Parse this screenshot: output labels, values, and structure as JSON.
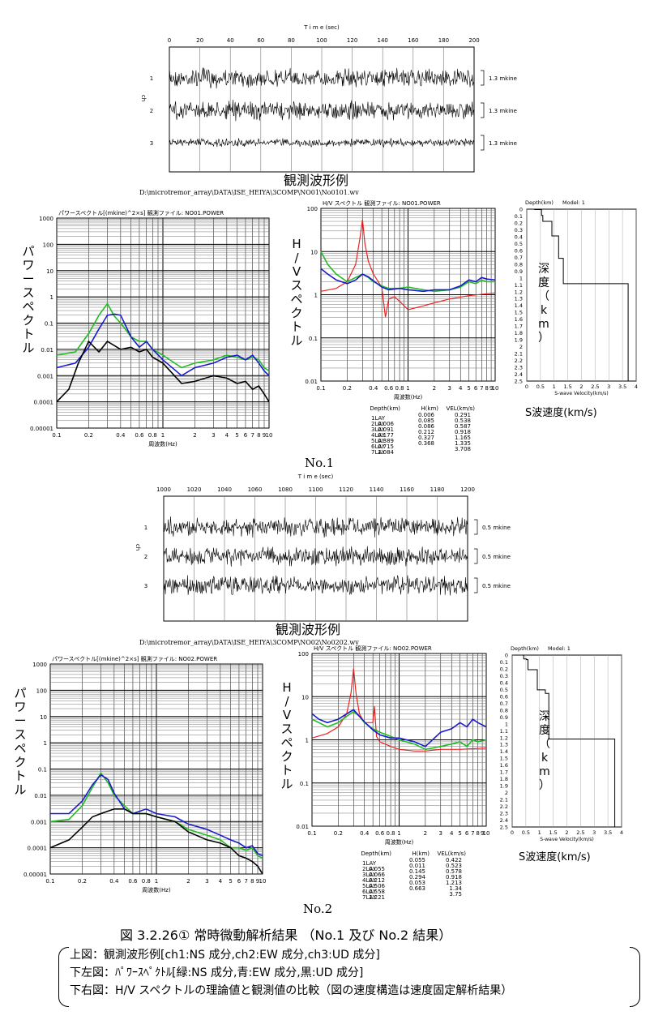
{
  "panel1": {
    "time_axis_title": "T i m e (sec)",
    "time_ticks": [
      "0",
      "20",
      "40",
      "60",
      "80",
      "100",
      "120",
      "140",
      "160",
      "180",
      "200"
    ],
    "channel_axis_label": "ch",
    "channels": [
      "1",
      "2",
      "3"
    ],
    "scales": [
      "1.3  mkine",
      "1.3  mkine",
      "1.3  mkine"
    ],
    "caption": "観測波形例",
    "file_path": "D:\\microtremor_array\\DATA\\ISE_HEIYA\\3COMP\\NO01\\No0101.wv",
    "label": "No.1"
  },
  "panel2": {
    "time_axis_title": "T i m e (sec)",
    "time_ticks": [
      "1000",
      "1020",
      "1040",
      "1060",
      "1080",
      "1100",
      "1120",
      "1140",
      "1160",
      "1180",
      "1200"
    ],
    "channel_axis_label": "ch",
    "channels": [
      "1",
      "2",
      "3"
    ],
    "scales": [
      "0.5  mkine",
      "0.5  mkine",
      "0.5  mkine"
    ],
    "caption": "観測波形例",
    "file_path": "D:\\microtremor_array\\DATA\\ISE_HEIYA\\3COMP\\NO02\\No0202.wv",
    "label": "No.2"
  },
  "power1": {
    "header": "パワースペクトル[(mkine)^2×s]   観測ファイル:   NO01.POWER",
    "ylabel": "パワースペクトル",
    "xlabel": "周波数(Hz)",
    "y_ticks": [
      "1000",
      "100",
      "10",
      "1",
      "0.1",
      "0.01",
      "0.001",
      "0.0001",
      "0.00001"
    ],
    "x_ticks": [
      "0.1",
      "0.2",
      "0.4",
      "0.6",
      "0.8",
      "1",
      "2",
      "3",
      "4",
      "5",
      "6",
      "7",
      "8",
      "9",
      "10"
    ]
  },
  "power2": {
    "header": "パワースペクトル[(mkine)^2×s]   観測ファイル:   NO02.POWER",
    "ylabel": "パワースペクトル",
    "xlabel": "周波数(Hz)",
    "y_ticks": [
      "1000",
      "100",
      "10",
      "1",
      "0.1",
      "0.01",
      "0.001",
      "0.0001",
      "0.00001"
    ],
    "x_ticks": [
      "0.1",
      "0.2",
      "0.4",
      "0.6",
      "0.8",
      "1",
      "2",
      "3",
      "4",
      "5",
      "6",
      "7",
      "8",
      "9",
      "10"
    ]
  },
  "hv1": {
    "header": "H/V  スペクトル 観測ファイル:   NO01.POWER",
    "ylabel": "H/Vスペクトル",
    "xlabel": "周波数(Hz)",
    "y_ticks": [
      "100",
      "10",
      "1",
      "0.1",
      "0.01"
    ],
    "x_ticks": [
      "0.1",
      "0.2",
      "0.4",
      "0.6",
      "0.8",
      "1",
      "2",
      "3",
      "4",
      "5",
      "6",
      "7",
      "8",
      "9",
      "10"
    ],
    "table_headers": [
      "Depth(km)",
      "H(km)",
      "VEL(km/s)"
    ],
    "rows": [
      {
        "lay": "1LAY",
        "depth": "",
        "h": "0.006",
        "vel": "0.291"
      },
      {
        "lay": "2LAY",
        "depth": "0.006",
        "h": "0.085",
        "vel": "0.538"
      },
      {
        "lay": "3LAY",
        "depth": "0.091",
        "h": "0.086",
        "vel": "0.587"
      },
      {
        "lay": "4LAY",
        "depth": "0.177",
        "h": "0.212",
        "vel": "0.918"
      },
      {
        "lay": "5LAY",
        "depth": "0.389",
        "h": "0.327",
        "vel": "1.165"
      },
      {
        "lay": "6LAY",
        "depth": "0.715",
        "h": "0.368",
        "vel": "1.335"
      },
      {
        "lay": "7LAY",
        "depth": "1.084",
        "h": "",
        "vel": "3.708"
      }
    ]
  },
  "hv2": {
    "header": "H/V  スペクトル 観測ファイル:   NO02.POWER",
    "ylabel": "H/Vスペクトル",
    "xlabel": "周波数(Hz)",
    "y_ticks": [
      "100",
      "10",
      "1",
      "0.1",
      "0.01"
    ],
    "x_ticks": [
      "0.1",
      "0.2",
      "0.4",
      "0.6",
      "0.8",
      "1",
      "2",
      "3",
      "4",
      "5",
      "6",
      "7",
      "8",
      "9",
      "10"
    ],
    "table_headers": [
      "Depth(km)",
      "H(km)",
      "VEL(km/s)"
    ],
    "rows": [
      {
        "lay": "1LAY",
        "depth": "",
        "h": "0.055",
        "vel": "0.422"
      },
      {
        "lay": "2LAY",
        "depth": "0.055",
        "h": "0.011",
        "vel": "0.523"
      },
      {
        "lay": "3LAY",
        "depth": "0.066",
        "h": "0.145",
        "vel": "0.578"
      },
      {
        "lay": "4LAY",
        "depth": "0.212",
        "h": "0.294",
        "vel": "0.918"
      },
      {
        "lay": "5LAY",
        "depth": "0.506",
        "h": "0.053",
        "vel": "1.213"
      },
      {
        "lay": "6LAY",
        "depth": "0.558",
        "h": "0.663",
        "vel": "1.34"
      },
      {
        "lay": "7LAY",
        "depth": "1.221",
        "h": "",
        "vel": "3.75"
      }
    ]
  },
  "vel1": {
    "header_depth": "Depth(km)",
    "header_model": "Model: 1",
    "depth_ticks": [
      "0",
      "0.1",
      "0.2",
      "0.3",
      "0.4",
      "0.5",
      "0.6",
      "0.7",
      "0.8",
      "0.9",
      "1",
      "1.1",
      "1.2",
      "1.3",
      "1.4",
      "1.5",
      "1.6",
      "1.7",
      "1.8",
      "1.9",
      "2",
      "2.1",
      "2.2",
      "2.3",
      "2.4",
      "2.5"
    ],
    "v_ticks": [
      "0",
      "0.5",
      "1",
      "1.5",
      "2",
      "2.5",
      "3",
      "3.5",
      "4"
    ],
    "xlabel": "S-wave Velocity(km/s)",
    "depth_label": "深度（km）",
    "caption": "S波速度(km/s)"
  },
  "vel2": {
    "header_depth": "Depth(km)",
    "header_model": "Model: 1",
    "depth_ticks": [
      "0",
      "0.1",
      "0.2",
      "0.3",
      "0.4",
      "0.5",
      "0.6",
      "0.7",
      "0.8",
      "0.9",
      "1",
      "1.1",
      "1.2",
      "1.3",
      "1.4",
      "1.5",
      "1.6",
      "1.7",
      "1.8",
      "1.9",
      "2",
      "2.1",
      "2.2",
      "2.3",
      "2.4",
      "2.5"
    ],
    "v_ticks": [
      "0",
      "0.5",
      "1",
      "1.5",
      "2",
      "2.5",
      "3",
      "3.5",
      "4"
    ],
    "xlabel": "S-wave Velocity(km/s)",
    "depth_label": "深度（km）",
    "caption": "S波速度(km/s)"
  },
  "figure": {
    "title": "図 3.2.26①   常時微動解析結果 （No.1 及び No.2 結果）",
    "lines": [
      "上図：観測波形例[ch1:NS 成分,ch2:EW 成分,ch3:UD 成分]",
      "下左図：ﾊﾟﾜｰｽﾍﾟｸﾄﾙ[緑:NS 成分,青:EW 成分,黒:UD 成分]",
      "下右図：H/V スペクトルの理論値と観測値の比較（図の速度構造は速度固定解析結果）"
    ]
  },
  "colors": {
    "ns": "#22bb22",
    "ew": "#1a1acc",
    "ud": "#000000",
    "theory": "#ee2222"
  },
  "chart_data": [
    {
      "type": "line",
      "title": "",
      "xlabel": "T i m e (sec)",
      "ylabel": "ch",
      "xlim": [
        0,
        200
      ],
      "series": [
        {
          "name": "1",
          "values": []
        },
        {
          "name": "2",
          "values": []
        },
        {
          "name": "3",
          "values": []
        }
      ]
    },
    {
      "type": "line",
      "title": "パワースペクトル[(mkine)^2×s]   観測ファイル:   NO01.POWER",
      "xlabel": "周波数(Hz)",
      "ylabel": "パワースペクトル",
      "xscale": "log",
      "yscale": "log",
      "xlim": [
        0.1,
        10
      ],
      "ylim": [
        1e-05,
        1000
      ],
      "series": [
        {
          "name": "",
          "color": "green",
          "x": [
            0.1,
            0.15,
            0.2,
            0.25,
            0.3,
            0.35,
            0.4,
            0.5,
            0.6,
            0.7,
            0.8,
            1,
            1.5,
            2,
            3,
            4,
            5,
            6,
            7,
            8,
            9,
            10
          ],
          "values": [
            0.006,
            0.008,
            0.04,
            0.2,
            0.55,
            0.18,
            0.1,
            0.03,
            0.02,
            0.02,
            0.01,
            0.006,
            0.002,
            0.003,
            0.004,
            0.006,
            0.005,
            0.004,
            0.005,
            0.004,
            0.002,
            0.0015
          ]
        },
        {
          "name": "",
          "color": "blue",
          "x": [
            0.1,
            0.15,
            0.2,
            0.25,
            0.3,
            0.35,
            0.4,
            0.5,
            0.6,
            0.7,
            0.8,
            1,
            1.5,
            2,
            3,
            4,
            5,
            6,
            7,
            8,
            9,
            10
          ],
          "values": [
            0.002,
            0.003,
            0.012,
            0.06,
            0.2,
            0.22,
            0.2,
            0.03,
            0.012,
            0.02,
            0.01,
            0.004,
            0.001,
            0.002,
            0.003,
            0.005,
            0.006,
            0.004,
            0.006,
            0.003,
            0.0015,
            0.001
          ]
        },
        {
          "name": "",
          "color": "black",
          "x": [
            0.1,
            0.13,
            0.16,
            0.2,
            0.25,
            0.3,
            0.4,
            0.5,
            0.6,
            0.7,
            0.8,
            1,
            1.5,
            2,
            3,
            4,
            5,
            6,
            7,
            8,
            9,
            10
          ],
          "values": [
            0.0001,
            0.0003,
            0.003,
            0.02,
            0.008,
            0.02,
            0.01,
            0.012,
            0.008,
            0.01,
            0.005,
            0.003,
            0.0005,
            0.0006,
            0.001,
            0.0008,
            0.0005,
            0.0006,
            0.0003,
            0.0004,
            0.0002,
            0.0001
          ]
        }
      ]
    },
    {
      "type": "line",
      "title": "H/V  スペクトル 観測ファイル:   NO01.POWER",
      "xlabel": "周波数(Hz)",
      "ylabel": "H/Vスペクトル",
      "xscale": "log",
      "yscale": "log",
      "xlim": [
        0.1,
        10
      ],
      "ylim": [
        0.01,
        100
      ],
      "series": [
        {
          "name": "",
          "color": "red",
          "x": [
            0.1,
            0.15,
            0.2,
            0.25,
            0.28,
            0.3,
            0.32,
            0.35,
            0.4,
            0.5,
            0.55,
            0.6,
            0.7,
            0.8,
            1,
            1.5,
            2,
            3,
            5,
            10
          ],
          "values": [
            1.2,
            1.4,
            2,
            5,
            20,
            55,
            15,
            6,
            3,
            1.5,
            0.3,
            0.8,
            0.9,
            0.7,
            0.45,
            0.55,
            0.65,
            0.8,
            0.95,
            1.1
          ]
        },
        {
          "name": "",
          "color": "green",
          "x": [
            0.1,
            0.12,
            0.15,
            0.2,
            0.25,
            0.3,
            0.35,
            0.4,
            0.5,
            0.6,
            0.8,
            1,
            1.5,
            2,
            3,
            4,
            5,
            6,
            7,
            8,
            10
          ],
          "values": [
            10,
            5,
            3,
            2,
            2.5,
            3,
            2.5,
            2,
            1.6,
            1.4,
            1.4,
            1.5,
            1.3,
            1.2,
            1.3,
            1.5,
            2,
            1.8,
            2.2,
            2,
            2
          ]
        },
        {
          "name": "",
          "color": "blue",
          "x": [
            0.1,
            0.12,
            0.15,
            0.2,
            0.25,
            0.3,
            0.35,
            0.4,
            0.5,
            0.6,
            0.8,
            1,
            1.5,
            2,
            3,
            4,
            5,
            6,
            7,
            8,
            10
          ],
          "values": [
            4,
            3,
            2.2,
            1.8,
            2.2,
            3,
            2.6,
            2.1,
            1.5,
            1.3,
            1.4,
            1.3,
            1.2,
            1.3,
            1.3,
            1.6,
            2.2,
            2,
            2.5,
            2.3,
            2.2
          ]
        }
      ]
    },
    {
      "type": "line",
      "title": "Model: 1",
      "xlabel": "S-wave Velocity(km/s)",
      "ylabel": "Depth(km)",
      "xlim": [
        0,
        4
      ],
      "ylim": [
        2.5,
        0
      ],
      "series": [
        {
          "name": "",
          "x": [
            0.291,
            0.538,
            0.587,
            0.918,
            1.165,
            1.335,
            3.708
          ],
          "values": [
            0,
            0.006,
            0.091,
            0.177,
            0.389,
            0.715,
            1.084
          ]
        }
      ]
    },
    {
      "type": "line",
      "title": "",
      "xlabel": "T i m e (sec)",
      "ylabel": "ch",
      "xlim": [
        1000,
        1200
      ],
      "series": [
        {
          "name": "1",
          "values": []
        },
        {
          "name": "2",
          "values": []
        },
        {
          "name": "3",
          "values": []
        }
      ]
    },
    {
      "type": "line",
      "title": "パワースペクトル[(mkine)^2×s]   観測ファイル:   NO02.POWER",
      "xlabel": "周波数(Hz)",
      "ylabel": "パワースペクトル",
      "xscale": "log",
      "yscale": "log",
      "xlim": [
        0.1,
        10
      ],
      "ylim": [
        1e-05,
        1000
      ],
      "series": [
        {
          "name": "",
          "color": "green",
          "x": [
            0.1,
            0.15,
            0.2,
            0.25,
            0.3,
            0.35,
            0.4,
            0.5,
            0.6,
            0.8,
            1,
            1.5,
            2,
            3,
            4,
            5,
            6,
            7,
            8,
            9,
            10
          ],
          "values": [
            0.001,
            0.0012,
            0.004,
            0.02,
            0.07,
            0.03,
            0.01,
            0.004,
            0.002,
            0.002,
            0.0015,
            0.001,
            0.0005,
            0.0003,
            0.0002,
            0.0001,
            0.0001,
            8e-05,
            0.0001,
            5e-05,
            4e-05
          ]
        },
        {
          "name": "",
          "color": "blue",
          "x": [
            0.1,
            0.15,
            0.2,
            0.25,
            0.3,
            0.35,
            0.4,
            0.5,
            0.6,
            0.8,
            1,
            1.5,
            2,
            3,
            4,
            5,
            6,
            7,
            8,
            9,
            10
          ],
          "values": [
            0.002,
            0.002,
            0.006,
            0.025,
            0.06,
            0.04,
            0.012,
            0.003,
            0.002,
            0.003,
            0.002,
            0.0015,
            0.0008,
            0.0005,
            0.0003,
            0.0002,
            0.00015,
            0.0001,
            0.00012,
            6e-05,
            5e-05
          ]
        },
        {
          "name": "",
          "color": "black",
          "x": [
            0.1,
            0.15,
            0.2,
            0.25,
            0.3,
            0.4,
            0.5,
            0.6,
            0.8,
            1,
            1.5,
            2,
            3,
            4,
            5,
            6,
            7,
            8,
            9,
            10
          ],
          "values": [
            0.0001,
            0.0002,
            0.0006,
            0.0015,
            0.002,
            0.003,
            0.003,
            0.002,
            0.002,
            0.0015,
            0.001,
            0.0004,
            0.0002,
            0.00015,
            0.0001,
            5e-05,
            4e-05,
            3e-05,
            2e-05,
            1e-05
          ]
        }
      ]
    },
    {
      "type": "line",
      "title": "H/V  スペクトル 観測ファイル:   NO02.POWER",
      "xlabel": "周波数(Hz)",
      "ylabel": "H/Vスペクトル",
      "xscale": "log",
      "yscale": "log",
      "xlim": [
        0.1,
        10
      ],
      "ylim": [
        0.01,
        100
      ],
      "series": [
        {
          "name": "",
          "color": "red",
          "x": [
            0.1,
            0.15,
            0.2,
            0.25,
            0.28,
            0.3,
            0.32,
            0.35,
            0.4,
            0.5,
            0.52,
            0.55,
            0.6,
            0.8,
            1,
            1.5,
            2,
            3,
            5,
            10
          ],
          "values": [
            1.1,
            1.4,
            2,
            4,
            12,
            45,
            12,
            4,
            2.5,
            2.5,
            6,
            1.2,
            0.9,
            0.7,
            0.6,
            0.55,
            0.55,
            0.6,
            0.6,
            0.65
          ]
        },
        {
          "name": "",
          "color": "green",
          "x": [
            0.1,
            0.12,
            0.15,
            0.2,
            0.25,
            0.3,
            0.35,
            0.4,
            0.5,
            0.6,
            0.8,
            1,
            1.5,
            2,
            3,
            4,
            5,
            6,
            7,
            8,
            10
          ],
          "values": [
            3,
            2.5,
            2,
            2.5,
            3.5,
            4.5,
            3.5,
            2.5,
            1.8,
            1.5,
            1.2,
            1,
            0.8,
            0.6,
            0.7,
            0.8,
            0.9,
            0.7,
            1,
            0.9,
            1
          ]
        },
        {
          "name": "",
          "color": "blue",
          "x": [
            0.1,
            0.12,
            0.15,
            0.2,
            0.25,
            0.3,
            0.35,
            0.4,
            0.5,
            0.6,
            0.8,
            1,
            1.5,
            2,
            3,
            4,
            5,
            6,
            7,
            8,
            10
          ],
          "values": [
            4,
            3,
            2.5,
            3,
            4,
            5,
            3.5,
            2.6,
            1.7,
            1.3,
            1.1,
            1.1,
            0.9,
            0.7,
            1.5,
            1.8,
            2.5,
            2,
            3,
            2.5,
            2
          ]
        }
      ]
    },
    {
      "type": "line",
      "title": "Model: 1",
      "xlabel": "S-wave Velocity(km/s)",
      "ylabel": "Depth(km)",
      "xlim": [
        0,
        4
      ],
      "ylim": [
        2.5,
        0
      ],
      "series": [
        {
          "name": "",
          "x": [
            0.422,
            0.523,
            0.578,
            0.918,
            1.213,
            1.34,
            3.75
          ],
          "values": [
            0,
            0.055,
            0.066,
            0.212,
            0.506,
            0.558,
            1.221
          ]
        }
      ]
    }
  ]
}
